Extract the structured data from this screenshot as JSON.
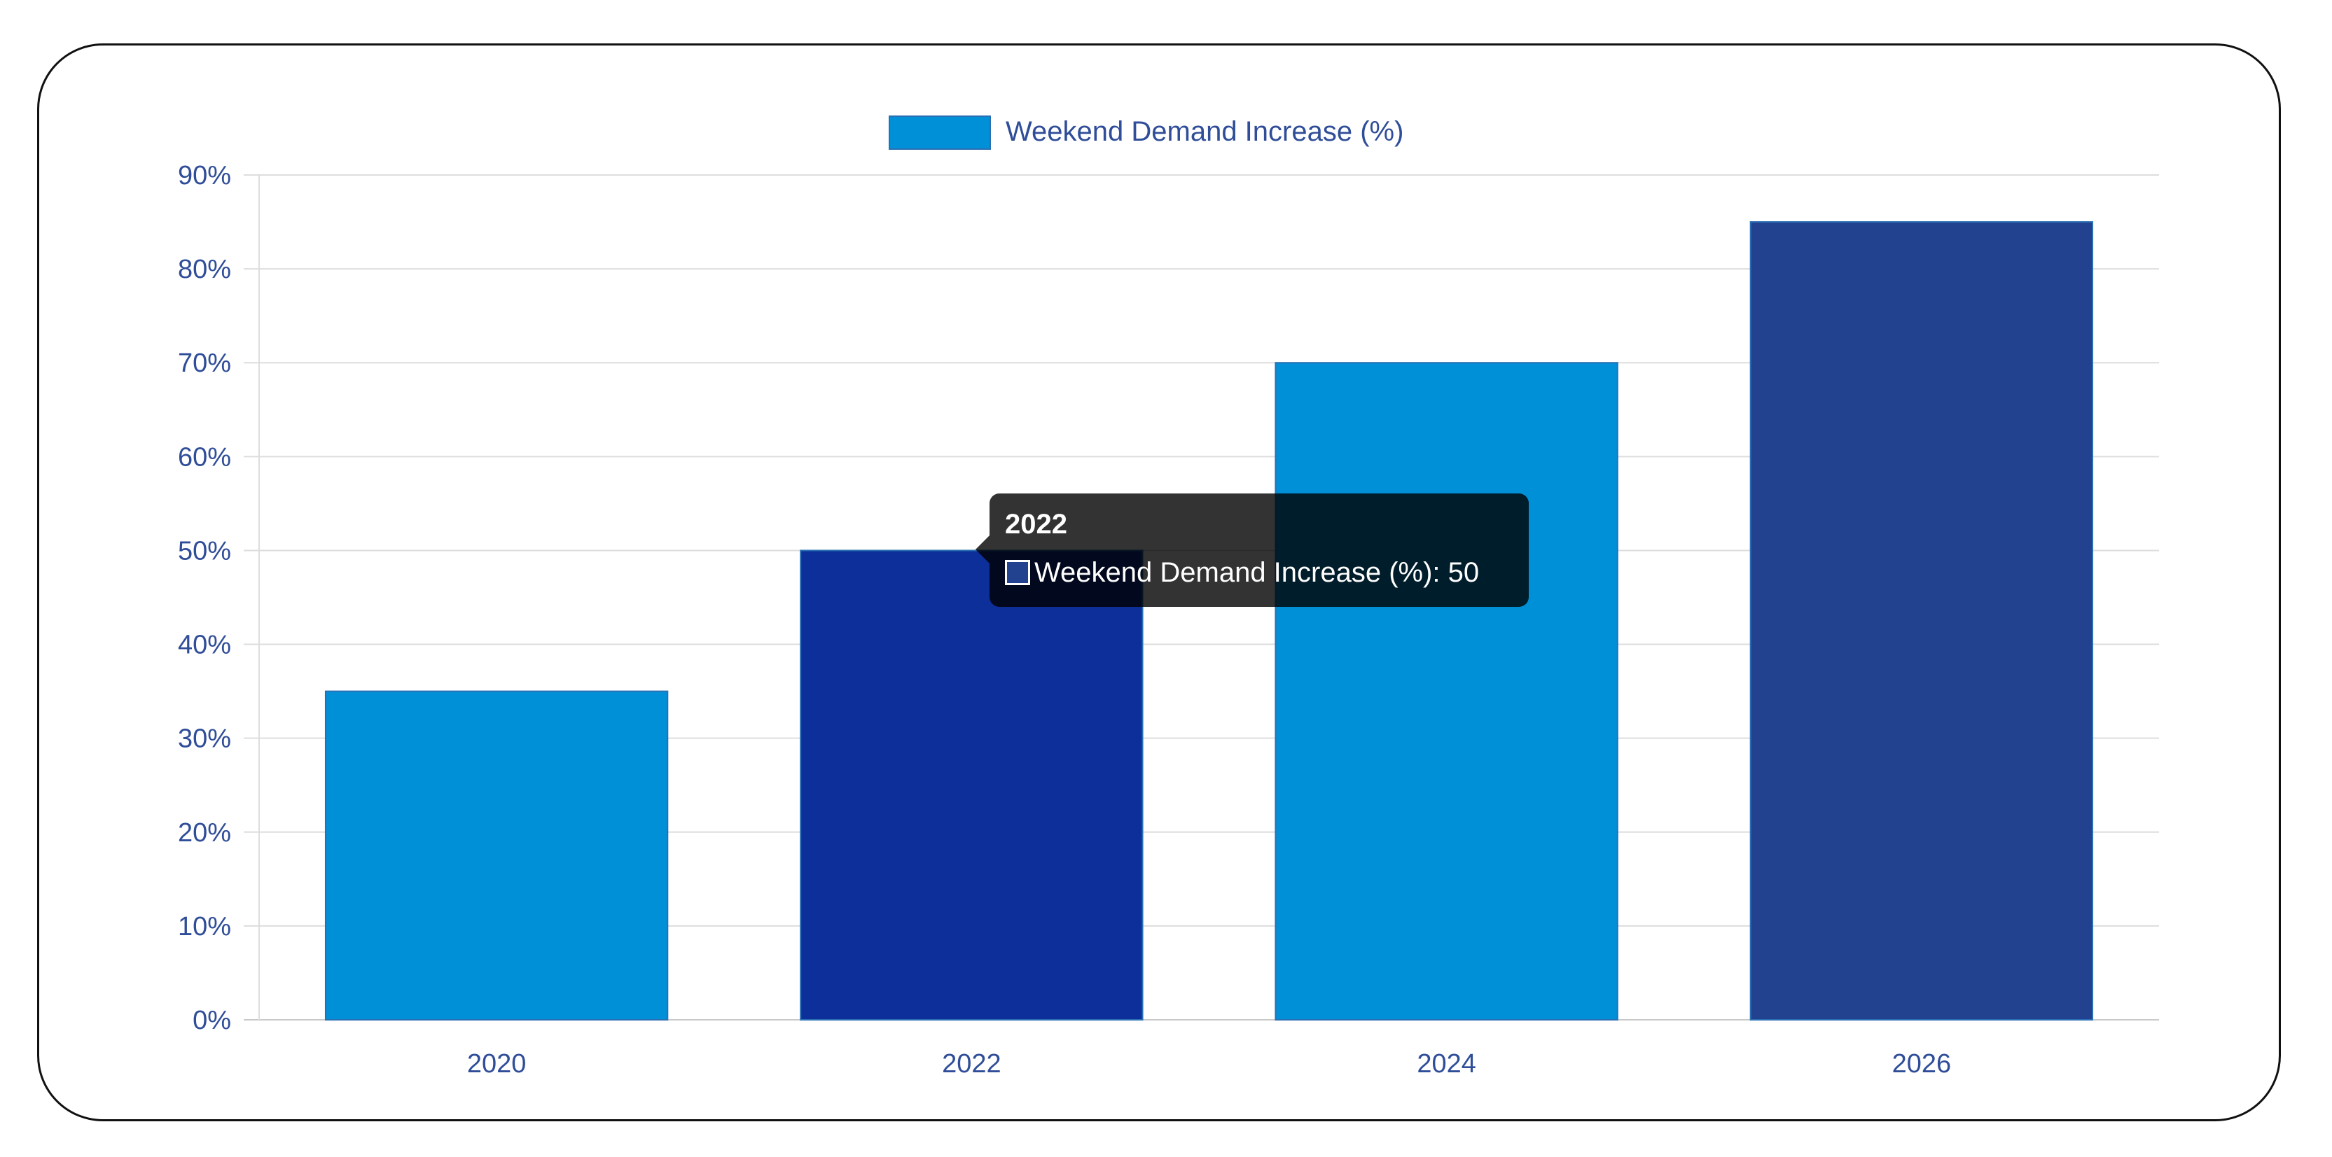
{
  "chart_data": {
    "type": "bar",
    "categories": [
      "2020",
      "2022",
      "2024",
      "2026"
    ],
    "series": [
      {
        "name": "Weekend Demand Increase (%)",
        "values": [
          35,
          50,
          70,
          85
        ]
      }
    ],
    "bar_colors": [
      "#0090d8",
      "#0c2f99",
      "#0090d8",
      "#22418f"
    ],
    "legend_color": "#0090d8",
    "legend_position": "top-center",
    "ylim": [
      0,
      90
    ],
    "y_ticks": [
      "0%",
      "10%",
      "20%",
      "30%",
      "40%",
      "50%",
      "60%",
      "70%",
      "80%",
      "90%"
    ],
    "grid": true,
    "tooltip": {
      "title": "2022",
      "label": "Weekend Demand Increase (%): 50",
      "swatch_color": "#22418f"
    }
  }
}
